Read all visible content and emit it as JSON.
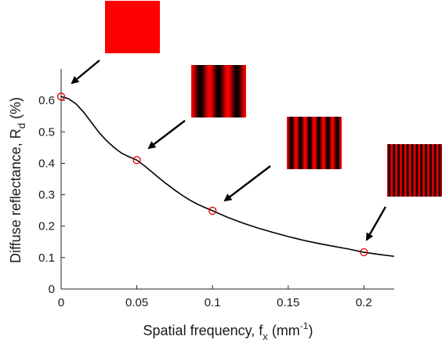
{
  "chart_data": {
    "type": "line",
    "xlabel": "Spatial frequency, f",
    "xlabel_sub": "x",
    "xlabel_unit": "(mm",
    "xlabel_unit_sup": "-1",
    "xlabel_unit_close": ")",
    "ylabel": "Diffuse reflectance, R",
    "ylabel_sub": "d",
    "ylabel_unit": "(%)",
    "xlim": [
      0,
      0.22
    ],
    "ylim": [
      0,
      0.7
    ],
    "xticks": [
      0,
      0.05,
      0.1,
      0.15,
      0.2
    ],
    "xtick_labels": [
      "0",
      "0.05",
      "0.1",
      "0.15",
      "0.2"
    ],
    "yticks": [
      0,
      0.1,
      0.2,
      0.3,
      0.4,
      0.5,
      0.6
    ],
    "ytick_labels": [
      "0",
      "0.1",
      "0.2",
      "0.3",
      "0.4",
      "0.5",
      "0.6"
    ],
    "grid": false,
    "series": [
      {
        "values_x": [
          0,
          0.005,
          0.01,
          0.015,
          0.02,
          0.025,
          0.03,
          0.035,
          0.04,
          0.045,
          0.05,
          0.055,
          0.06,
          0.065,
          0.07,
          0.075,
          0.08,
          0.085,
          0.09,
          0.095,
          0.1,
          0.11,
          0.12,
          0.13,
          0.14,
          0.15,
          0.16,
          0.17,
          0.18,
          0.19,
          0.2,
          0.21,
          0.22
        ],
        "values_y": [
          0.612,
          0.605,
          0.588,
          0.562,
          0.53,
          0.498,
          0.472,
          0.45,
          0.432,
          0.42,
          0.41,
          0.392,
          0.372,
          0.352,
          0.333,
          0.315,
          0.298,
          0.283,
          0.27,
          0.259,
          0.249,
          0.228,
          0.21,
          0.194,
          0.18,
          0.167,
          0.155,
          0.145,
          0.136,
          0.127,
          0.117,
          0.11,
          0.104
        ],
        "color": "#000000"
      }
    ],
    "markers": [
      {
        "x": 0,
        "y": 0.612
      },
      {
        "x": 0.05,
        "y": 0.41
      },
      {
        "x": 0.1,
        "y": 0.249
      },
      {
        "x": 0.2,
        "y": 0.117
      }
    ],
    "marker_color": "#e00000",
    "pattern_color": "#ff0000",
    "pattern_stripe_counts": [
      0,
      3,
      6,
      12
    ]
  }
}
